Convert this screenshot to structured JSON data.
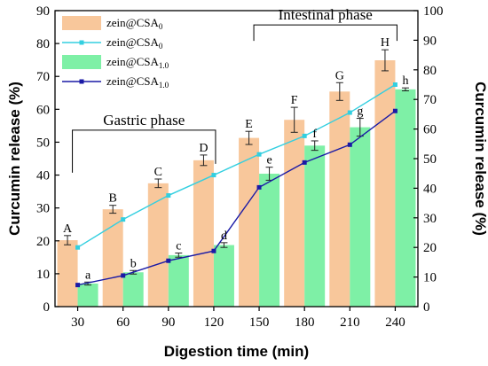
{
  "chart_data": {
    "type": "bar",
    "xlabel": "Digestion time (min)",
    "ylabel_left": "Curcumin release (%)",
    "ylabel_right": "Curcumin release (%)",
    "categories": [
      "30",
      "60",
      "90",
      "120",
      "150",
      "180",
      "210",
      "240"
    ],
    "ylim_left": [
      0,
      90
    ],
    "yticks_left": [
      0,
      10,
      20,
      30,
      40,
      50,
      60,
      70,
      80,
      90
    ],
    "ylim_right": [
      0,
      100
    ],
    "yticks_right": [
      0,
      10,
      20,
      30,
      40,
      50,
      60,
      70,
      80,
      90,
      100
    ],
    "series": [
      {
        "name": "zein@CSA",
        "sub": "0",
        "kind": "bar",
        "axis": "left",
        "color": "#f8c79b",
        "values": [
          20.2,
          29.6,
          37.5,
          44.5,
          51.3,
          56.8,
          65.4,
          74.9
        ],
        "errors": [
          1.4,
          1.2,
          1.3,
          1.6,
          2.0,
          3.8,
          2.7,
          3.2
        ],
        "labels": [
          "A",
          "B",
          "C",
          "D",
          "E",
          "F",
          "G",
          "H"
        ]
      },
      {
        "name": "zein@CSA",
        "sub": "0",
        "kind": "line",
        "axis": "left",
        "color": "#33cfe0",
        "values": [
          18.0,
          26.5,
          33.8,
          40.0,
          46.3,
          51.9,
          59.0,
          67.5
        ]
      },
      {
        "name": "zein@CSA",
        "sub": "1.0",
        "kind": "bar",
        "axis": "right",
        "color": "#7ef0a6",
        "values": [
          7.8,
          11.6,
          17.4,
          20.8,
          44.9,
          54.4,
          60.6,
          73.4
        ],
        "errors": [
          0.5,
          0.6,
          0.7,
          0.8,
          2.2,
          1.6,
          3.0,
          0.5
        ],
        "labels": [
          "a",
          "b",
          "c",
          "d",
          "e",
          "f",
          "g",
          "h"
        ]
      },
      {
        "name": "zein@CSA",
        "sub": "1.0",
        "kind": "line",
        "axis": "right",
        "color": "#1a1aa6",
        "values": [
          7.3,
          10.5,
          15.5,
          18.8,
          40.3,
          48.7,
          54.7,
          66.1
        ]
      }
    ],
    "annotations": [
      {
        "text": "Gastric phase",
        "from": "30",
        "to": "120"
      },
      {
        "text": "Intestinal phase",
        "from": "150",
        "to": "240"
      }
    ]
  }
}
